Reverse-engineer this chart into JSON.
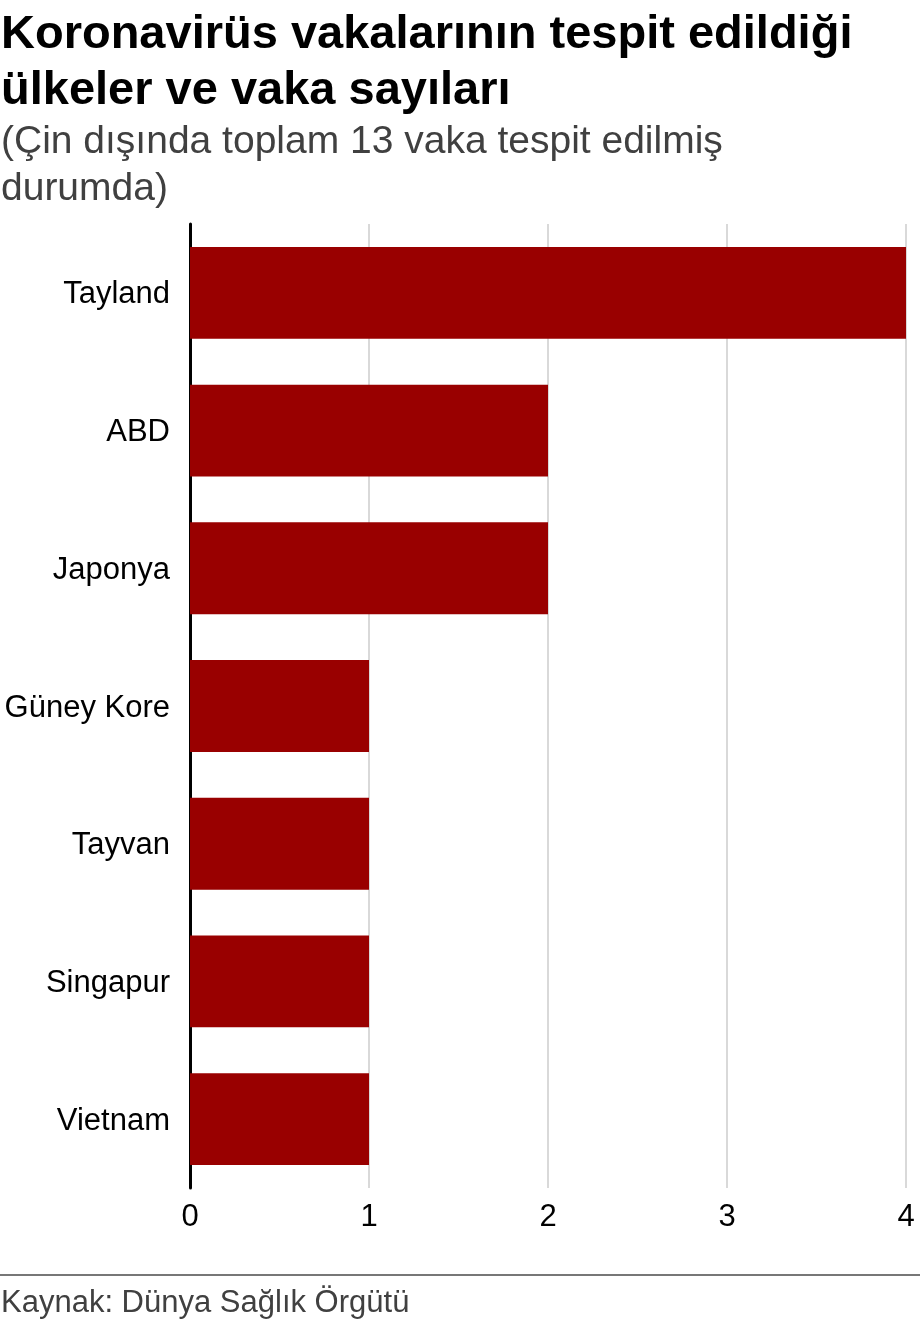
{
  "chart_data": {
    "type": "bar",
    "orientation": "horizontal",
    "title": "Koronavirüs vakalarının tespit edildiği ülkeler ve vaka sayıları",
    "subtitle": "(Çin dışında toplam 13 vaka tespit edilmiş durumda)",
    "categories": [
      "Tayland",
      "ABD",
      "Japonya",
      "Güney Kore",
      "Tayvan",
      "Singapur",
      "Vietnam"
    ],
    "values": [
      4,
      2,
      2,
      1,
      1,
      1,
      1
    ],
    "color": "#990000",
    "xlim": [
      0,
      4
    ],
    "xticks": [
      0,
      1,
      2,
      3,
      4
    ],
    "grid": "x",
    "annotations": [
      "Kaynak: Dünya Sağlık Örgütü"
    ]
  }
}
